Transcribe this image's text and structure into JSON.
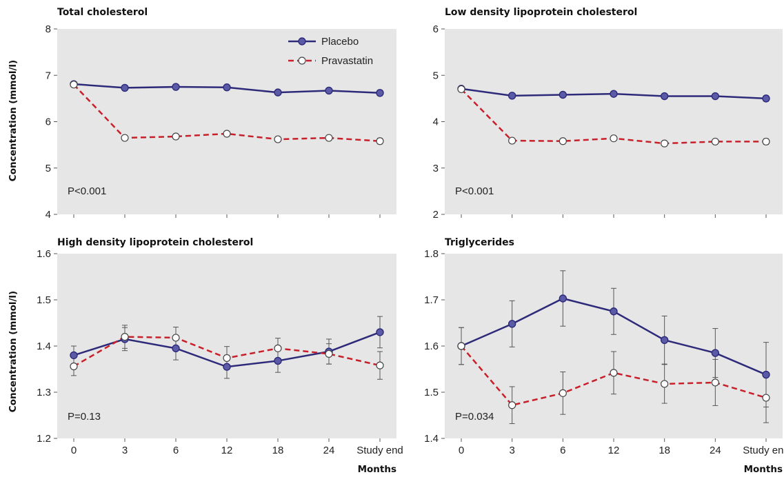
{
  "colors": {
    "placebo": "#2e2a7a",
    "placebo_marker_fill": "#5a5aa6",
    "pravastatin": "#c8202a",
    "pravastatin_marker_fill": "#ffffff",
    "panel_bg": "#e6e6e6",
    "error_bar": "#555555"
  },
  "legend": {
    "placebo": "Placebo",
    "pravastatin": "Pravastatin"
  },
  "chart_data": [
    {
      "type": "line",
      "title": "Total cholesterol",
      "ylabel": "Concentration (mmol/l)",
      "xlabel": "",
      "categories": [
        "0",
        "3",
        "6",
        "12",
        "18",
        "24",
        "Study end"
      ],
      "ylim": [
        4,
        8
      ],
      "yticks": [
        "4",
        "5",
        "6",
        "7",
        "8"
      ],
      "annotation": "P<0.001",
      "legend": "top-right",
      "series": [
        {
          "name": "Placebo",
          "values": [
            6.81,
            6.73,
            6.75,
            6.74,
            6.63,
            6.67,
            6.62
          ],
          "err": [
            0.03,
            0.04,
            0.04,
            0.04,
            0.04,
            0.05,
            0.06
          ]
        },
        {
          "name": "Pravastatin",
          "values": [
            6.8,
            5.65,
            5.68,
            5.74,
            5.62,
            5.65,
            5.58
          ],
          "err": [
            0.03,
            0.04,
            0.04,
            0.05,
            0.04,
            0.04,
            0.06
          ]
        }
      ]
    },
    {
      "type": "line",
      "title": "Low density lipoprotein cholesterol",
      "ylabel": "",
      "xlabel": "",
      "categories": [
        "0",
        "3",
        "6",
        "12",
        "18",
        "24",
        "Study end"
      ],
      "ylim": [
        2,
        6
      ],
      "yticks": [
        "2",
        "3",
        "4",
        "5",
        "6"
      ],
      "annotation": "P<0.001",
      "series": [
        {
          "name": "Placebo",
          "values": [
            4.71,
            4.56,
            4.58,
            4.6,
            4.55,
            4.55,
            4.5
          ],
          "err": [
            0.03,
            0.04,
            0.04,
            0.04,
            0.04,
            0.05,
            0.06
          ]
        },
        {
          "name": "Pravastatin",
          "values": [
            4.7,
            3.59,
            3.58,
            3.64,
            3.53,
            3.57,
            3.57
          ],
          "err": [
            0.03,
            0.04,
            0.04,
            0.04,
            0.04,
            0.04,
            0.06
          ]
        }
      ]
    },
    {
      "type": "line",
      "title": "High density lipoprotein cholesterol",
      "ylabel": "Concentration (mmol/l)",
      "xlabel": "",
      "categories": [
        "0",
        "3",
        "6",
        "12",
        "18",
        "24",
        "Study end"
      ],
      "ylim": [
        1.2,
        1.6
      ],
      "yticks": [
        "1.2",
        "1.3",
        "1.4",
        "1.5",
        "1.6"
      ],
      "annotation": "P=0.13",
      "series": [
        {
          "name": "Placebo",
          "values": [
            1.38,
            1.415,
            1.395,
            1.355,
            1.368,
            1.388,
            1.43
          ],
          "err": [
            0.02,
            0.025,
            0.025,
            0.025,
            0.025,
            0.027,
            0.034
          ]
        },
        {
          "name": "Pravastatin",
          "values": [
            1.356,
            1.42,
            1.418,
            1.374,
            1.395,
            1.383,
            1.358
          ],
          "err": [
            0.02,
            0.025,
            0.023,
            0.025,
            0.022,
            0.022,
            0.03
          ]
        }
      ]
    },
    {
      "type": "line",
      "title": "Triglycerides",
      "ylabel": "",
      "xlabel": "Months",
      "categories": [
        "0",
        "3",
        "6",
        "12",
        "18",
        "24",
        "Study end"
      ],
      "ylim": [
        1.4,
        1.8
      ],
      "yticks": [
        "1.4",
        "1.5",
        "1.6",
        "1.7",
        "1.8"
      ],
      "annotation": "P=0.034",
      "series": [
        {
          "name": "Placebo",
          "values": [
            1.6,
            1.648,
            1.703,
            1.675,
            1.613,
            1.585,
            1.538
          ],
          "err": [
            0.04,
            0.05,
            0.06,
            0.05,
            0.052,
            0.053,
            0.07
          ]
        },
        {
          "name": "Pravastatin",
          "values": [
            1.6,
            1.472,
            1.498,
            1.542,
            1.518,
            1.521,
            1.488
          ],
          "err": [
            0.04,
            0.04,
            0.046,
            0.046,
            0.042,
            0.05,
            0.054
          ]
        }
      ]
    }
  ],
  "xlabel_left": "Months"
}
